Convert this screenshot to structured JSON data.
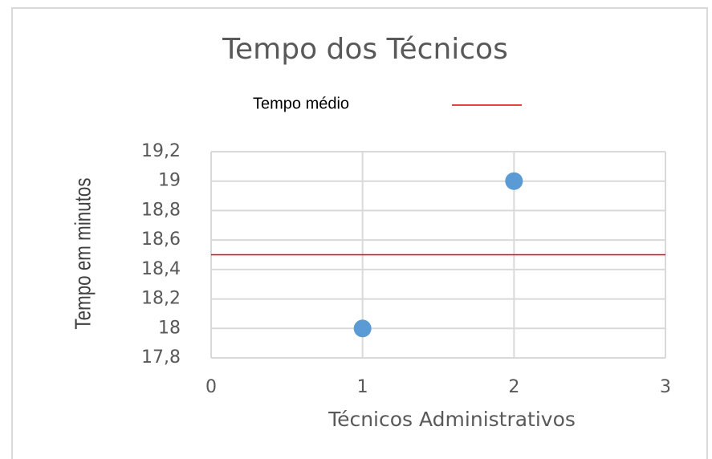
{
  "chart_data": {
    "type": "scatter",
    "title": "Tempo dos Técnicos",
    "xlabel": "Técnicos Administrativos",
    "ylabel": "Tempo em minutos",
    "legend": "top",
    "grid": true,
    "series": [
      {
        "type": "scatter",
        "color": "#5b9bd5",
        "x": [
          1,
          2
        ],
        "values": [
          18,
          19
        ]
      },
      {
        "type": "line",
        "name": "Tempo médio",
        "color": "#e00000",
        "x": [
          0,
          3
        ],
        "values": [
          18.5,
          18.5
        ]
      }
    ],
    "xlim": [
      0,
      3
    ],
    "xticks": [
      0,
      1,
      2,
      3
    ],
    "ylim": [
      17.8,
      19.2
    ],
    "yticks": [
      {
        "value": 17.8,
        "label": "17,8"
      },
      18,
      {
        "value": 18.2,
        "label": "18,2"
      },
      {
        "value": 18.4,
        "label": "18,4"
      },
      {
        "value": 18.6,
        "label": "18,6"
      },
      {
        "value": 18.8,
        "label": "18,8"
      },
      19,
      {
        "value": 19.2,
        "label": "19,2"
      }
    ]
  }
}
